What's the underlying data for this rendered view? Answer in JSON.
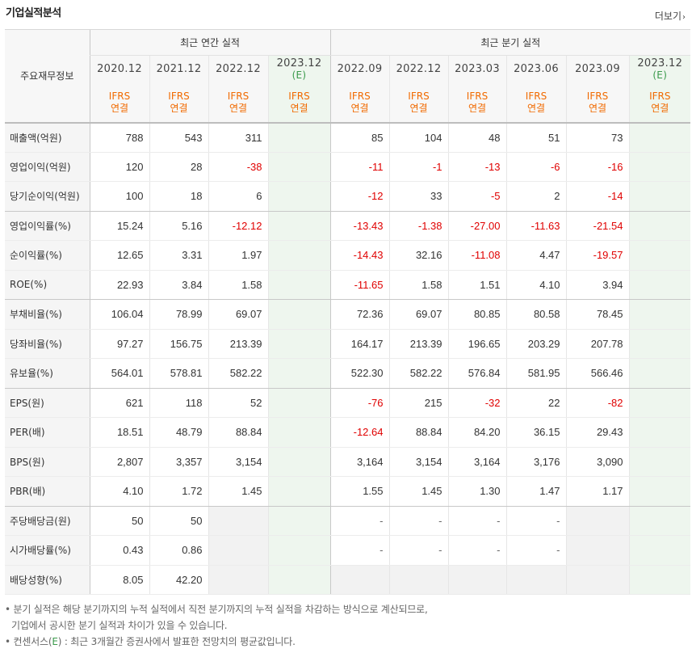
{
  "header": {
    "title": "기업실적분석",
    "more_label": "더보기"
  },
  "table": {
    "row_header_label": "주요재무정보",
    "annual_group_label": "최근 연간 실적",
    "quarter_group_label": "최근 분기 실적",
    "annual_periods": [
      {
        "year": "2020.12",
        "est": ""
      },
      {
        "year": "2021.12",
        "est": ""
      },
      {
        "year": "2022.12",
        "est": ""
      },
      {
        "year": "2023.12",
        "est": "(E)"
      }
    ],
    "quarter_periods": [
      {
        "year": "2022.09",
        "est": ""
      },
      {
        "year": "2022.12",
        "est": ""
      },
      {
        "year": "2023.03",
        "est": ""
      },
      {
        "year": "2023.06",
        "est": ""
      },
      {
        "year": "2023.09",
        "est": ""
      },
      {
        "year": "2023.12",
        "est": "(E)"
      }
    ],
    "ifrs_top": "IFRS",
    "ifrs_bottom": "연결",
    "rows": [
      {
        "label": "매출액(억원)",
        "values": [
          "788",
          "543",
          "311",
          "",
          "85",
          "104",
          "48",
          "51",
          "73",
          ""
        ]
      },
      {
        "label": "영업이익(억원)",
        "values": [
          "120",
          "28",
          "-38",
          "",
          "-11",
          "-1",
          "-13",
          "-6",
          "-16",
          ""
        ]
      },
      {
        "label": "당기순이익(억원)",
        "values": [
          "100",
          "18",
          "6",
          "",
          "-12",
          "33",
          "-5",
          "2",
          "-14",
          ""
        ]
      },
      {
        "label": "영업이익률(%)",
        "values": [
          "15.24",
          "5.16",
          "-12.12",
          "",
          "-13.43",
          "-1.38",
          "-27.00",
          "-11.63",
          "-21.54",
          ""
        ]
      },
      {
        "label": "순이익률(%)",
        "values": [
          "12.65",
          "3.31",
          "1.97",
          "",
          "-14.43",
          "32.16",
          "-11.08",
          "4.47",
          "-19.57",
          ""
        ]
      },
      {
        "label": "ROE(%)",
        "values": [
          "22.93",
          "3.84",
          "1.58",
          "",
          "-11.65",
          "1.58",
          "1.51",
          "4.10",
          "3.94",
          ""
        ]
      },
      {
        "label": "부채비율(%)",
        "values": [
          "106.04",
          "78.99",
          "69.07",
          "",
          "72.36",
          "69.07",
          "80.85",
          "80.58",
          "78.45",
          ""
        ]
      },
      {
        "label": "당좌비율(%)",
        "values": [
          "97.27",
          "156.75",
          "213.39",
          "",
          "164.17",
          "213.39",
          "196.65",
          "203.29",
          "207.78",
          ""
        ]
      },
      {
        "label": "유보율(%)",
        "values": [
          "564.01",
          "578.81",
          "582.22",
          "",
          "522.30",
          "582.22",
          "576.84",
          "581.95",
          "566.46",
          ""
        ]
      },
      {
        "label": "EPS(원)",
        "values": [
          "621",
          "118",
          "52",
          "",
          "-76",
          "215",
          "-32",
          "22",
          "-82",
          ""
        ]
      },
      {
        "label": "PER(배)",
        "values": [
          "18.51",
          "48.79",
          "88.84",
          "",
          "-12.64",
          "88.84",
          "84.20",
          "36.15",
          "29.43",
          ""
        ]
      },
      {
        "label": "BPS(원)",
        "values": [
          "2,807",
          "3,357",
          "3,154",
          "",
          "3,164",
          "3,154",
          "3,164",
          "3,176",
          "3,090",
          ""
        ]
      },
      {
        "label": "PBR(배)",
        "values": [
          "4.10",
          "1.72",
          "1.45",
          "",
          "1.55",
          "1.45",
          "1.30",
          "1.47",
          "1.17",
          ""
        ]
      },
      {
        "label": "주당배당금(원)",
        "values": [
          "50",
          "50",
          "",
          "",
          "-",
          "-",
          "-",
          "-",
          "",
          ""
        ]
      },
      {
        "label": "시가배당률(%)",
        "values": [
          "0.43",
          "0.86",
          "",
          "",
          "-",
          "-",
          "-",
          "-",
          "",
          ""
        ]
      },
      {
        "label": "배당성향(%)",
        "values": [
          "8.05",
          "42.20",
          "",
          "",
          "",
          "",
          "",
          "",
          "",
          ""
        ]
      }
    ]
  },
  "notes": {
    "line1": "분기 실적은 해당 분기까지의 누적 실적에서 직전 분기까지의 누적 실적을 차감하는 방식으로 계산되므로,",
    "line2": "기업에서 공시한 분기 실적과 차이가 있을 수 있습니다.",
    "line3_prefix": "컨센서스(",
    "line3_mark": "E",
    "line3_suffix": ") : 최근 3개월간 증권사에서 발표한 전망치의 평균값입니다."
  },
  "colors": {
    "negative": "#e00000",
    "ifrs": "#f16a00",
    "estimate": "#3a9a4b",
    "estimate_bg": "#eef6ee"
  }
}
